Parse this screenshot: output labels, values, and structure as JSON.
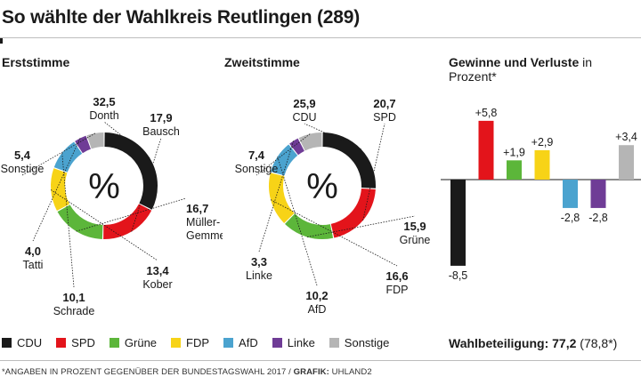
{
  "title": "So wählte der Wahlkreis Reutlingen (289)",
  "colors": {
    "CDU": "#1a1a1a",
    "SPD": "#e3141b",
    "Grüne": "#5cb63a",
    "FDP": "#f7d317",
    "AfD": "#4ba3cf",
    "Linke": "#6f3c96",
    "Sonstige": "#b5b5b5"
  },
  "chart_data": [
    {
      "type": "pie",
      "title": "Erststimme",
      "center_label": "%",
      "slices": [
        {
          "party": "CDU",
          "value": 32.5,
          "value_label": "32,5",
          "name": "Donth"
        },
        {
          "party": "SPD",
          "value": 17.9,
          "value_label": "17,9",
          "name": "Bausch"
        },
        {
          "party": "Grüne",
          "value": 16.7,
          "value_label": "16,7",
          "name": "Müller-",
          "name2": "Gemmeke"
        },
        {
          "party": "FDP",
          "value": 13.4,
          "value_label": "13,4",
          "name": "Kober"
        },
        {
          "party": "AfD",
          "value": 10.1,
          "value_label": "10,1",
          "name": "Schrade"
        },
        {
          "party": "Linke",
          "value": 4.0,
          "value_label": "4,0",
          "name": "Tatti"
        },
        {
          "party": "Sonstige",
          "value": 5.4,
          "value_label": "5,4",
          "name": "Sonstige"
        }
      ]
    },
    {
      "type": "pie",
      "title": "Zweitstimme",
      "center_label": "%",
      "slices": [
        {
          "party": "CDU",
          "value": 25.9,
          "value_label": "25,9",
          "name": "CDU"
        },
        {
          "party": "SPD",
          "value": 20.7,
          "value_label": "20,7",
          "name": "SPD"
        },
        {
          "party": "Grüne",
          "value": 15.9,
          "value_label": "15,9",
          "name": "Grüne"
        },
        {
          "party": "FDP",
          "value": 16.6,
          "value_label": "16,6",
          "name": "FDP"
        },
        {
          "party": "AfD",
          "value": 10.2,
          "value_label": "10,2",
          "name": "AfD"
        },
        {
          "party": "Linke",
          "value": 3.3,
          "value_label": "3,3",
          "name": "Linke"
        },
        {
          "party": "Sonstige",
          "value": 7.4,
          "value_label": "7,4",
          "name": "Sonstige"
        }
      ]
    },
    {
      "type": "bar",
      "title": "Gewinne und Verluste",
      "title_suffix": "in Prozent*",
      "categories": [
        "CDU",
        "SPD",
        "Grüne",
        "FDP",
        "AfD",
        "Linke",
        "Sonstige"
      ],
      "values": [
        -8.5,
        5.8,
        1.9,
        2.9,
        -2.8,
        -2.8,
        3.4
      ],
      "value_labels": [
        "-8,5",
        "+5,8",
        "+1,9",
        "+2,9",
        "-2,8",
        "-2,8",
        "+3,4"
      ]
    }
  ],
  "legend": [
    "CDU",
    "SPD",
    "Grüne",
    "FDP",
    "AfD",
    "Linke",
    "Sonstige"
  ],
  "turnout": {
    "label": "Wahlbeteiligung:",
    "value": "77,2",
    "previous": "(78,8*)"
  },
  "footnote": {
    "text": "*ANGABEN IN PROZENT GEGENÜBER DER BUNDESTAGSWAHL 2017 / ",
    "credit_label": "GRAFIK:",
    "credit": "UHLAND2"
  }
}
